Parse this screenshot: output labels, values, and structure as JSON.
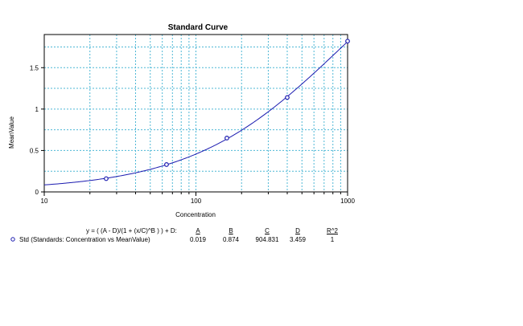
{
  "chart_data": {
    "type": "scatter",
    "title": "Standard Curve",
    "xlabel": "Concentration",
    "ylabel": "MeanValue",
    "x_scale": "log",
    "xlim": [
      10,
      1000
    ],
    "ylim": [
      0,
      1.9
    ],
    "x_ticks": [
      "10",
      "100",
      "1000"
    ],
    "y_ticks": [
      "0",
      "0.5",
      "1",
      "1.5"
    ],
    "grid": true,
    "grid_color": "#4fb8d6",
    "series": [
      {
        "name": "Std (Standards: Concentration vs MeanValue)",
        "color": "#1b1bb0",
        "x": [
          25.6,
          64,
          160,
          400,
          1000
        ],
        "y": [
          0.16,
          0.33,
          0.65,
          1.14,
          1.82
        ]
      }
    ],
    "fit": {
      "equation": "y = ( (A - D)/(1 + (x/C)^B ) ) + D:",
      "headers": [
        "A",
        "B",
        "C",
        "D",
        "R^2"
      ],
      "values": [
        "0.019",
        "0.874",
        "904.831",
        "3.459",
        "1"
      ],
      "params": {
        "A": 0.019,
        "B": 0.874,
        "C": 904.831,
        "D": 3.459
      }
    }
  }
}
